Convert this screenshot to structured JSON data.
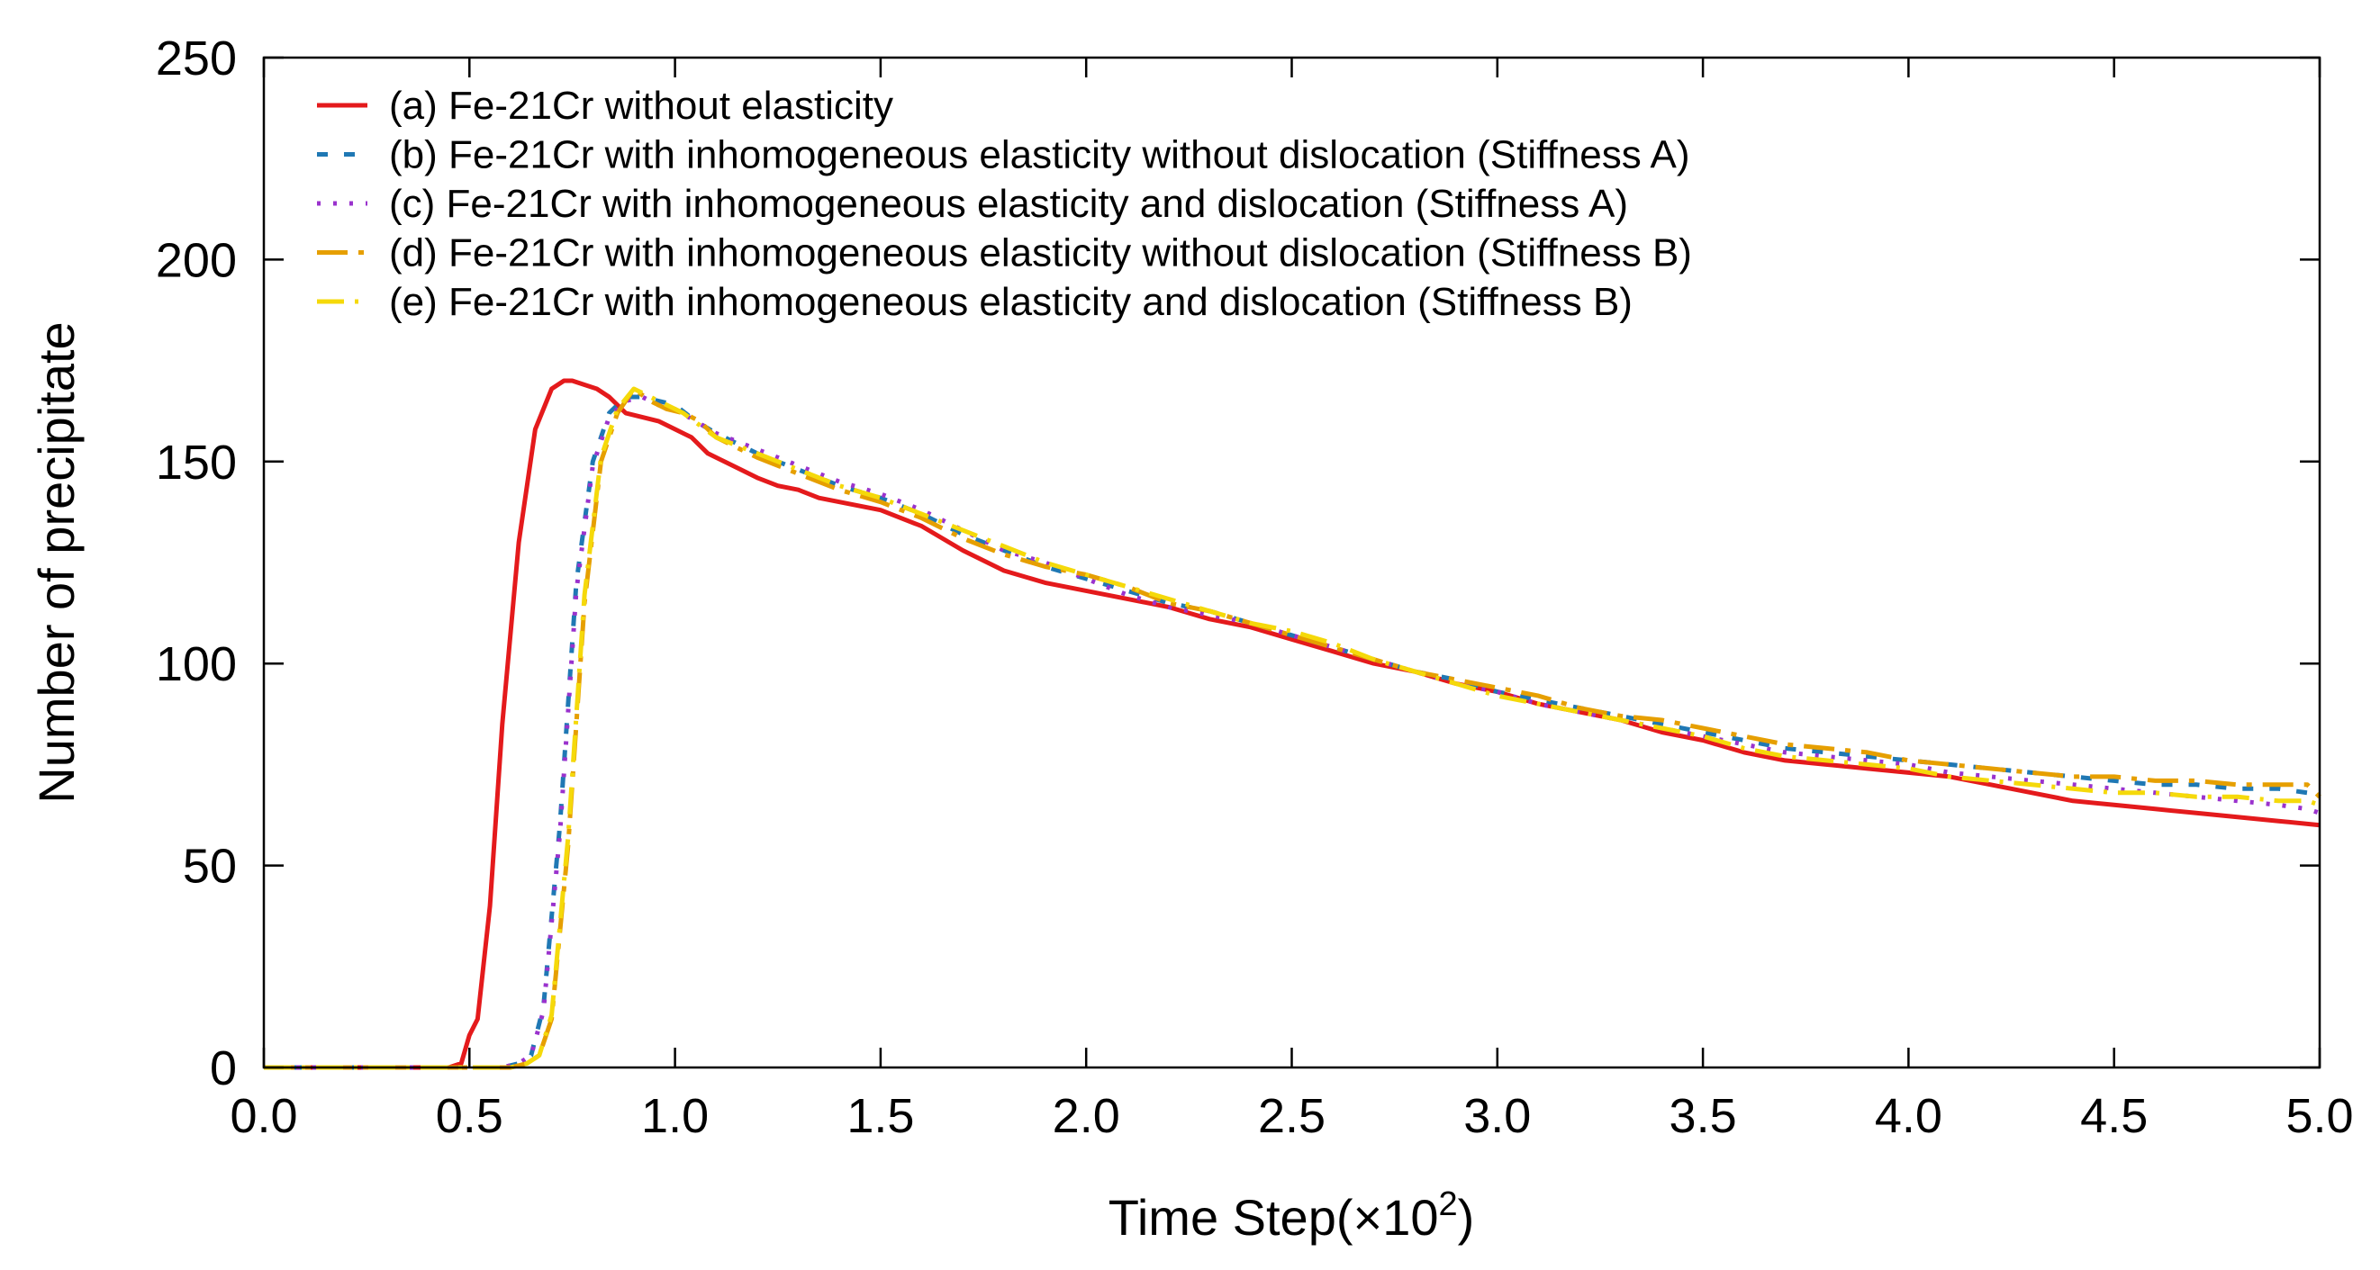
{
  "chart_data": {
    "type": "line",
    "title": "",
    "xlabel": "Time Step(×10",
    "xlabel_sup": "2",
    "xlabel_close": ")",
    "ylabel": "Number of precipitate",
    "xlim": [
      0.0,
      5.0
    ],
    "ylim": [
      0,
      250
    ],
    "xticks": [
      "0.0",
      "0.5",
      "1.0",
      "1.5",
      "2.0",
      "2.5",
      "3.0",
      "3.5",
      "4.0",
      "4.5",
      "5.0"
    ],
    "yticks": [
      "0",
      "50",
      "100",
      "150",
      "200",
      "250"
    ],
    "grid": false,
    "legend_position": "top-left",
    "series": [
      {
        "name": "(a) Fe-21Cr without elasticity",
        "color": "#e41a1c",
        "dash": "solid",
        "x": [
          0.0,
          0.45,
          0.48,
          0.5,
          0.52,
          0.55,
          0.58,
          0.62,
          0.66,
          0.7,
          0.73,
          0.75,
          0.78,
          0.81,
          0.84,
          0.88,
          0.92,
          0.96,
          1.0,
          1.04,
          1.08,
          1.12,
          1.16,
          1.2,
          1.25,
          1.3,
          1.35,
          1.4,
          1.5,
          1.6,
          1.7,
          1.8,
          1.9,
          2.0,
          2.1,
          2.2,
          2.3,
          2.4,
          2.5,
          2.6,
          2.7,
          2.8,
          2.9,
          3.0,
          3.1,
          3.2,
          3.3,
          3.4,
          3.5,
          3.6,
          3.7,
          3.8,
          3.9,
          4.0,
          4.1,
          4.2,
          4.3,
          4.4,
          4.5,
          4.6,
          4.7,
          4.8,
          4.9,
          5.0
        ],
        "values": [
          0,
          0,
          1,
          8,
          12,
          40,
          85,
          130,
          158,
          168,
          170,
          170,
          169,
          168,
          166,
          162,
          161,
          160,
          158,
          156,
          152,
          150,
          148,
          146,
          144,
          143,
          141,
          140,
          138,
          134,
          128,
          123,
          120,
          118,
          116,
          114,
          111,
          109,
          106,
          103,
          100,
          98,
          95,
          93,
          90,
          88,
          86,
          83,
          81,
          78,
          76,
          75,
          74,
          73,
          72,
          70,
          68,
          66,
          65,
          64,
          63,
          62,
          61,
          60
        ]
      },
      {
        "name": "(b) Fe-21Cr with inhomogeneous elasticity without dislocation (Stiffness A)",
        "color": "#1f78b4",
        "dash": "12 18",
        "x": [
          0.0,
          0.58,
          0.62,
          0.65,
          0.68,
          0.72,
          0.76,
          0.8,
          0.84,
          0.88,
          0.92,
          0.96,
          1.0,
          1.05,
          1.1,
          1.2,
          1.3,
          1.4,
          1.5,
          1.6,
          1.7,
          1.8,
          1.9,
          2.0,
          2.1,
          2.2,
          2.3,
          2.4,
          2.5,
          2.6,
          2.7,
          2.8,
          2.9,
          3.0,
          3.1,
          3.2,
          3.3,
          3.4,
          3.5,
          3.6,
          3.7,
          3.8,
          3.9,
          4.0,
          4.1,
          4.2,
          4.3,
          4.4,
          4.5,
          4.6,
          4.7,
          4.8,
          4.9,
          4.97,
          5.0
        ],
        "values": [
          0,
          0,
          1,
          3,
          15,
          60,
          120,
          150,
          162,
          166,
          166,
          165,
          164,
          160,
          157,
          152,
          148,
          144,
          141,
          137,
          132,
          128,
          124,
          121,
          118,
          115,
          113,
          110,
          107,
          104,
          101,
          98,
          96,
          93,
          91,
          89,
          87,
          85,
          83,
          81,
          79,
          78,
          77,
          76,
          75,
          74,
          73,
          72,
          71,
          70,
          70,
          69,
          69,
          68,
          67
        ]
      },
      {
        "name": "(c) Fe-21Cr with inhomogeneous elasticity and dislocation (Stiffness A)",
        "color": "#9a32cd",
        "dash": "4 14",
        "x": [
          0.0,
          0.58,
          0.62,
          0.65,
          0.68,
          0.72,
          0.76,
          0.8,
          0.84,
          0.88,
          0.92,
          0.96,
          1.0,
          1.05,
          1.1,
          1.2,
          1.3,
          1.4,
          1.5,
          1.6,
          1.7,
          1.8,
          1.9,
          2.0,
          2.1,
          2.2,
          2.3,
          2.4,
          2.5,
          2.6,
          2.7,
          2.8,
          2.9,
          3.0,
          3.1,
          3.2,
          3.3,
          3.4,
          3.5,
          3.6,
          3.7,
          3.8,
          3.9,
          4.0,
          4.1,
          4.2,
          4.3,
          4.4,
          4.5,
          4.6,
          4.7,
          4.8,
          4.9,
          4.97,
          5.0
        ],
        "values": [
          0,
          0,
          1,
          3,
          14,
          58,
          118,
          149,
          161,
          165,
          166,
          164,
          163,
          160,
          157,
          153,
          149,
          145,
          142,
          138,
          133,
          128,
          125,
          121,
          117,
          114,
          112,
          110,
          107,
          104,
          101,
          98,
          95,
          93,
          90,
          88,
          86,
          84,
          82,
          80,
          78,
          77,
          76,
          75,
          73,
          72,
          71,
          70,
          69,
          68,
          67,
          66,
          65,
          64,
          63
        ]
      },
      {
        "name": "(d) Fe-21Cr with inhomogeneous elasticity without dislocation (Stiffness B)",
        "color": "#e69f00",
        "dash": "34 12 6 12",
        "x": [
          0.0,
          0.6,
          0.64,
          0.67,
          0.7,
          0.74,
          0.78,
          0.82,
          0.86,
          0.9,
          0.94,
          0.98,
          1.02,
          1.06,
          1.1,
          1.2,
          1.3,
          1.4,
          1.5,
          1.6,
          1.7,
          1.8,
          1.9,
          2.0,
          2.1,
          2.2,
          2.3,
          2.4,
          2.5,
          2.6,
          2.7,
          2.8,
          2.9,
          3.0,
          3.1,
          3.2,
          3.3,
          3.4,
          3.5,
          3.6,
          3.7,
          3.8,
          3.9,
          4.0,
          4.1,
          4.2,
          4.3,
          4.4,
          4.5,
          4.6,
          4.7,
          4.8,
          4.9,
          4.97,
          5.0
        ],
        "values": [
          0,
          0,
          1,
          3,
          12,
          55,
          115,
          150,
          162,
          168,
          165,
          163,
          162,
          160,
          156,
          151,
          147,
          143,
          140,
          136,
          131,
          127,
          124,
          122,
          119,
          115,
          113,
          110,
          107,
          104,
          101,
          98,
          96,
          94,
          92,
          89,
          87,
          86,
          84,
          82,
          80,
          79,
          78,
          76,
          75,
          74,
          73,
          72,
          72,
          71,
          71,
          70,
          70,
          70,
          67
        ]
      },
      {
        "name": "(e) Fe-21Cr with inhomogeneous elasticity and dislocation (Stiffness B)",
        "color": "#f5d90a",
        "dash": "30 12 4 12",
        "x": [
          0.0,
          0.6,
          0.64,
          0.67,
          0.7,
          0.74,
          0.78,
          0.82,
          0.86,
          0.9,
          0.94,
          0.98,
          1.02,
          1.06,
          1.1,
          1.2,
          1.3,
          1.4,
          1.5,
          1.6,
          1.7,
          1.8,
          1.9,
          2.0,
          2.1,
          2.2,
          2.3,
          2.4,
          2.5,
          2.6,
          2.7,
          2.8,
          2.9,
          3.0,
          3.1,
          3.2,
          3.3,
          3.4,
          3.5,
          3.6,
          3.7,
          3.8,
          3.9,
          4.0,
          4.1,
          4.2,
          4.3,
          4.4,
          4.5,
          4.6,
          4.7,
          4.8,
          4.9,
          4.97,
          5.0
        ],
        "values": [
          0,
          0,
          1,
          3,
          13,
          57,
          117,
          151,
          163,
          168,
          166,
          164,
          162,
          159,
          156,
          152,
          148,
          144,
          141,
          137,
          133,
          129,
          125,
          122,
          119,
          116,
          113,
          110,
          108,
          105,
          101,
          98,
          95,
          92,
          90,
          88,
          86,
          84,
          82,
          79,
          77,
          76,
          75,
          74,
          72,
          71,
          70,
          69,
          68,
          68,
          67,
          67,
          66,
          66,
          65
        ]
      }
    ]
  }
}
